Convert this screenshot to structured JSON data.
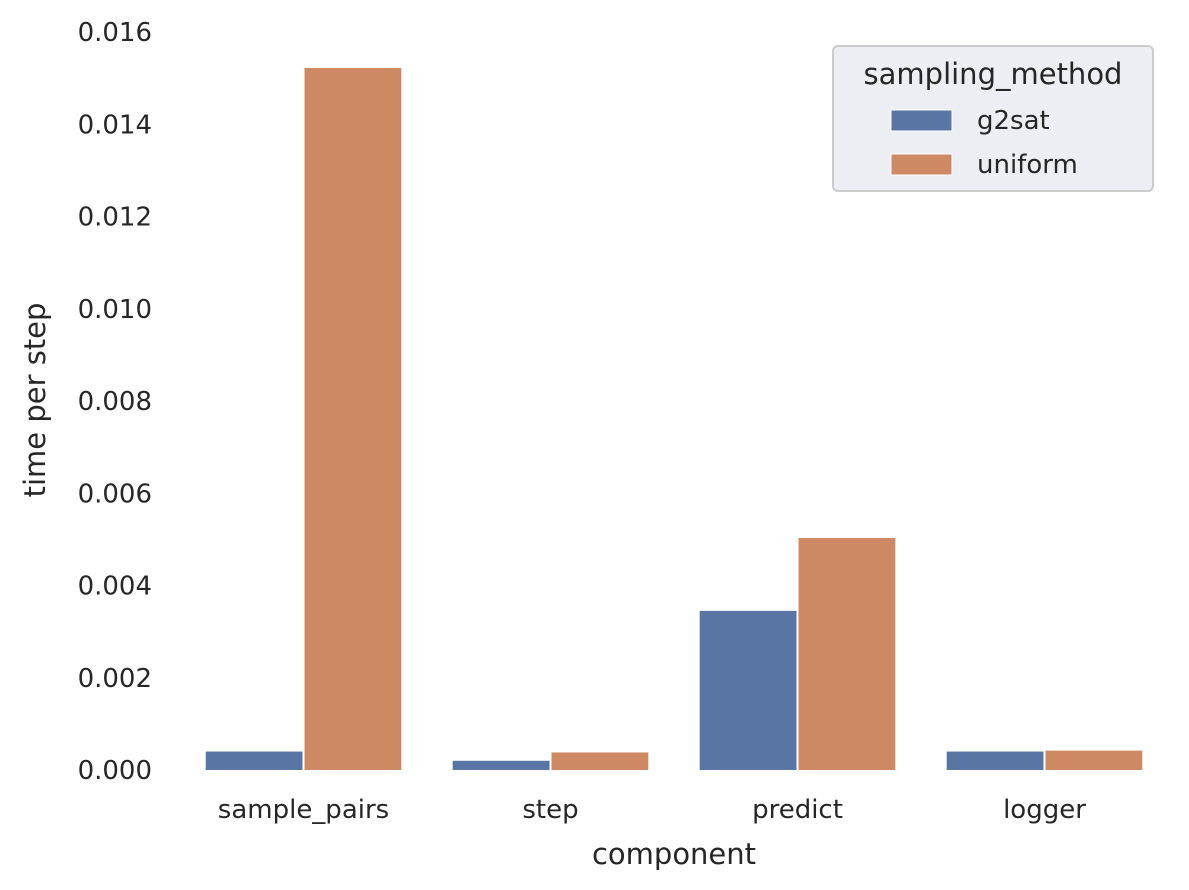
{
  "chart_data": {
    "type": "bar",
    "title": "",
    "xlabel": "component",
    "ylabel": "time per step",
    "categories": [
      "sample_pairs",
      "step",
      "predict",
      "logger"
    ],
    "series": [
      {
        "name": "g2sat",
        "color": "#5975a4",
        "values": [
          0.0004,
          0.0002,
          0.00345,
          0.0004
        ]
      },
      {
        "name": "uniform",
        "color": "#cc8963",
        "values": [
          0.01522,
          0.00038,
          0.00503,
          0.00042
        ]
      }
    ],
    "ylim": [
      0,
      0.016
    ],
    "yticks": [
      "0.000",
      "0.002",
      "0.004",
      "0.006",
      "0.008",
      "0.010",
      "0.012",
      "0.014",
      "0.016"
    ],
    "legend": {
      "title": "sampling_method",
      "placement": "top-right"
    },
    "grid": false
  }
}
